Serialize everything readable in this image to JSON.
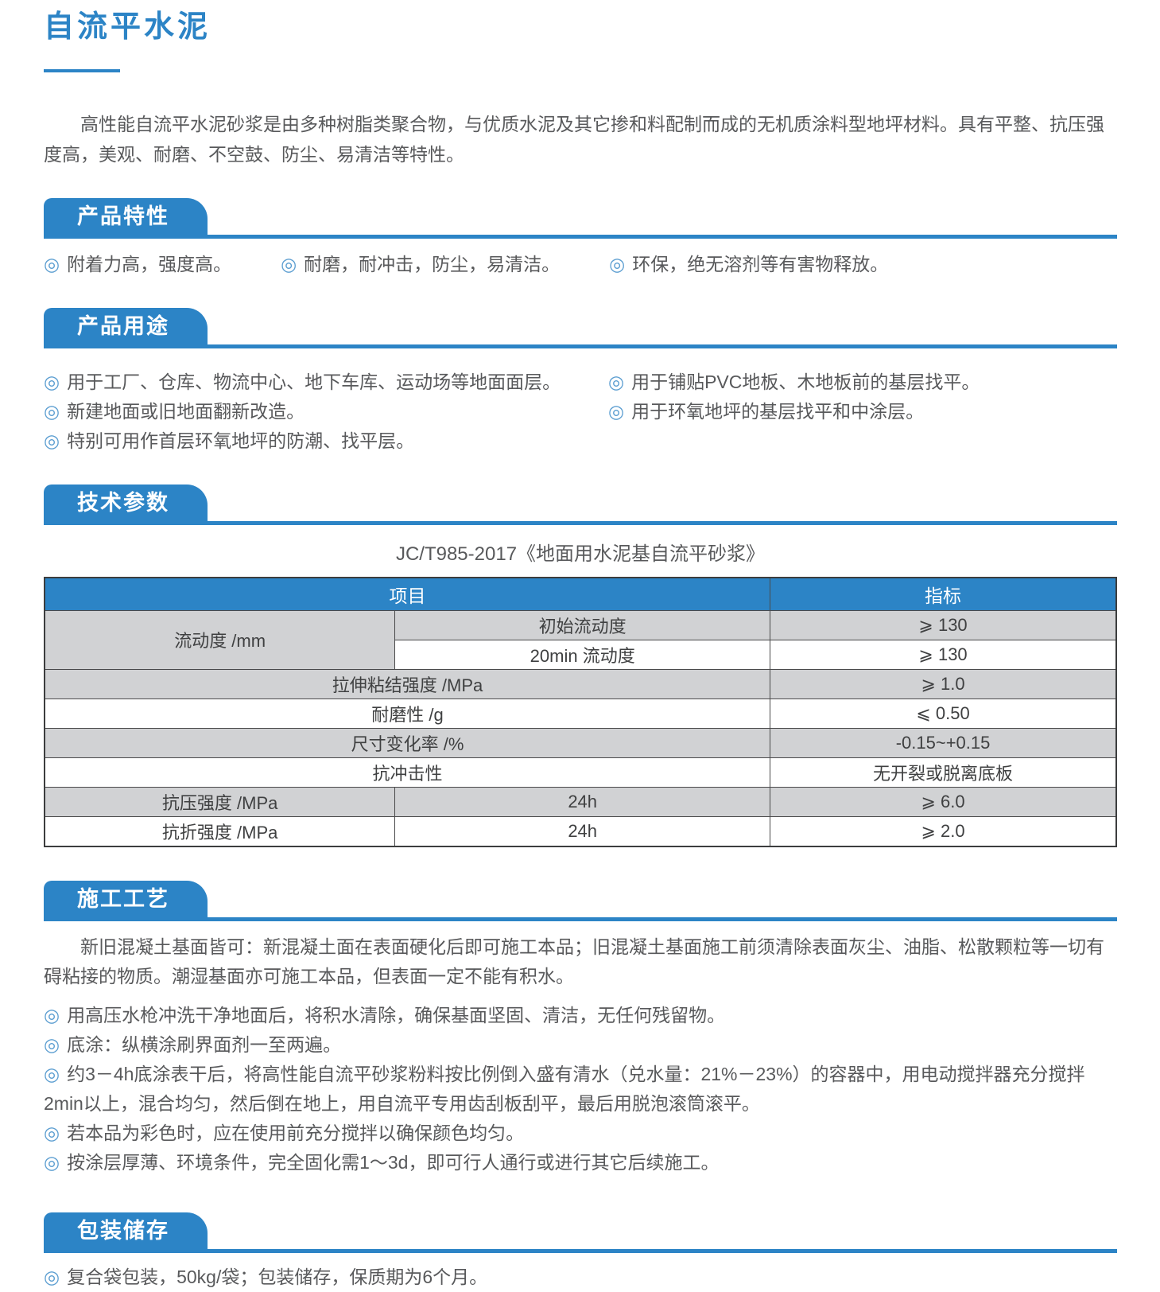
{
  "page": {
    "title": "自流平水泥",
    "intro": "高性能自流平水泥砂浆是由多种树脂类聚合物，与优质水泥及其它掺和料配制而成的无机质涂料型地坪材料。具有平整、抗压强度高，美观、耐磨、不空鼓、防尘、易清洁等特性。"
  },
  "colors": {
    "accent": "#2c84c6",
    "bullet_blue": "#5c9ed1",
    "row_gray": "#d1d2d4"
  },
  "icons": {
    "bullet_glyph": "◎"
  },
  "sections": {
    "features": {
      "heading": "产品特性",
      "items": [
        "附着力高，强度高。",
        "耐磨，耐冲击，防尘，易清洁。",
        "环保，绝无溶剂等有害物释放。"
      ]
    },
    "uses": {
      "heading": "产品用途",
      "left_items": [
        "用于工厂、仓库、物流中心、地下车库、运动场等地面面层。",
        "新建地面或旧地面翻新改造。",
        "特别可用作首层环氧地坪的防潮、找平层。"
      ],
      "right_items": [
        "用于铺贴PVC地板、木地板前的基层找平。",
        "用于环氧地坪的基层找平和中涂层。"
      ]
    },
    "tech": {
      "heading": "技术参数",
      "caption": "JC/T985-2017《地面用水泥基自流平砂浆》",
      "table": {
        "header_cells": [
          {
            "text": "项目",
            "colspan": 2
          },
          {
            "text": "指标"
          }
        ],
        "col_widths": [
          "32.7%",
          "35.0%",
          "32.3%"
        ],
        "rows": [
          {
            "cells": [
              {
                "text": "流动度 /mm",
                "rowspan": 2,
                "shade": true
              },
              {
                "text": "初始流动度",
                "shade": true
              },
              {
                "text": "⩾ 130",
                "shade": true
              }
            ]
          },
          {
            "cells": [
              {
                "text": "20min 流动度"
              },
              {
                "text": "⩾ 130"
              }
            ]
          },
          {
            "cells": [
              {
                "text": "拉伸粘结强度 /MPa",
                "colspan": 2,
                "shade": true
              },
              {
                "text": "⩾ 1.0",
                "shade": true
              }
            ]
          },
          {
            "cells": [
              {
                "text": "耐磨性 /g",
                "colspan": 2
              },
              {
                "text": "⩽ 0.50"
              }
            ]
          },
          {
            "cells": [
              {
                "text": "尺寸变化率 /%",
                "colspan": 2,
                "shade": true
              },
              {
                "text": "-0.15~+0.15",
                "shade": true
              }
            ]
          },
          {
            "cells": [
              {
                "text": "抗冲击性",
                "colspan": 2
              },
              {
                "text": "无开裂或脱离底板"
              }
            ]
          },
          {
            "cells": [
              {
                "text": "抗压强度 /MPa",
                "shade": true
              },
              {
                "text": "24h",
                "shade": true
              },
              {
                "text": "⩾ 6.0",
                "shade": true
              }
            ]
          },
          {
            "cells": [
              {
                "text": "抗折强度 /MPa"
              },
              {
                "text": "24h"
              },
              {
                "text": "⩾ 2.0"
              }
            ]
          }
        ]
      }
    },
    "process": {
      "heading": "施工工艺",
      "paragraph": "新旧混凝土基面皆可：新混凝土面在表面硬化后即可施工本品；旧混凝土基面施工前须清除表面灰尘、油脂、松散颗粒等一切有碍粘接的物质。潮湿基面亦可施工本品，但表面一定不能有积水。",
      "items": [
        "用高压水枪冲洗干净地面后，将积水清除，确保基面坚固、清洁，无任何残留物。",
        "底涂：纵横涂刷界面剂一至两遍。",
        "约3－4h底涂表干后，将高性能自流平砂浆粉料按比例倒入盛有清水（兑水量：21%－23%）的容器中，用电动搅拌器充分搅拌2min以上，混合均匀，然后倒在地上，用自流平专用齿刮板刮平，最后用脱泡滚筒滚平。",
        "若本品为彩色时，应在使用前充分搅拌以确保颜色均匀。",
        "按涂层厚薄、环境条件，完全固化需1～3d，即可行人通行或进行其它后续施工。"
      ]
    },
    "packaging": {
      "heading": "包装储存",
      "items": [
        "复合袋包装，50kg/袋；包装储存，保质期为6个月。"
      ]
    }
  }
}
